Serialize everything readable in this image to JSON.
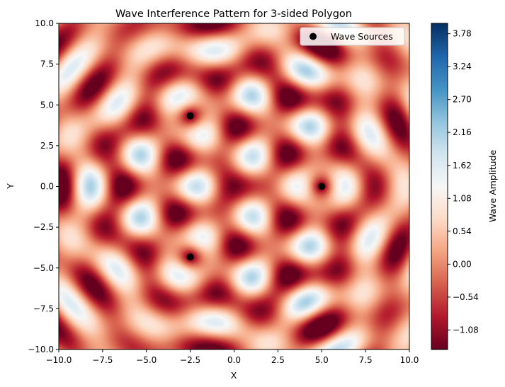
{
  "chart_data": {
    "type": "heatmap",
    "title": "Wave Interference Pattern for 3-sided Polygon",
    "xlabel": "X",
    "ylabel": "Y",
    "xlim": [
      -10,
      10
    ],
    "ylim": [
      -10,
      10
    ],
    "x_ticks": [
      -10,
      -7.5,
      -5,
      -2.5,
      0,
      2.5,
      5,
      7.5,
      10
    ],
    "y_ticks": [
      -10,
      -7.5,
      -5,
      -2.5,
      0,
      2.5,
      5,
      7.5,
      10
    ],
    "x_tick_labels": [
      "−10.0",
      "−7.5",
      "−5.0",
      "−2.5",
      "0.0",
      "2.5",
      "5.0",
      "7.5",
      "10.0"
    ],
    "y_tick_labels": [
      "−10.0",
      "−7.5",
      "−5.0",
      "−2.5",
      "0.0",
      "2.5",
      "5.0",
      "7.5",
      "10.0"
    ],
    "grid": false,
    "colormap": "RdBu",
    "colorbar": {
      "label": "Wave Amplitude",
      "range": [
        -1.4,
        3.95
      ],
      "ticks": [
        -1.08,
        -0.54,
        0.0,
        0.54,
        1.08,
        1.62,
        2.16,
        2.7,
        3.24,
        3.78
      ],
      "tick_labels": [
        "−1.08",
        "−0.54",
        "0.00",
        "0.54",
        "1.08",
        "1.62",
        "2.16",
        "2.70",
        "3.24",
        "3.78"
      ]
    },
    "legend": {
      "placement": "top-right",
      "entries": [
        "Wave Sources"
      ]
    },
    "sources": [
      {
        "x": 5.0,
        "y": 0.0
      },
      {
        "x": -2.5,
        "y": 4.33
      },
      {
        "x": -2.5,
        "y": -4.33
      }
    ],
    "source_color": "#000000"
  }
}
